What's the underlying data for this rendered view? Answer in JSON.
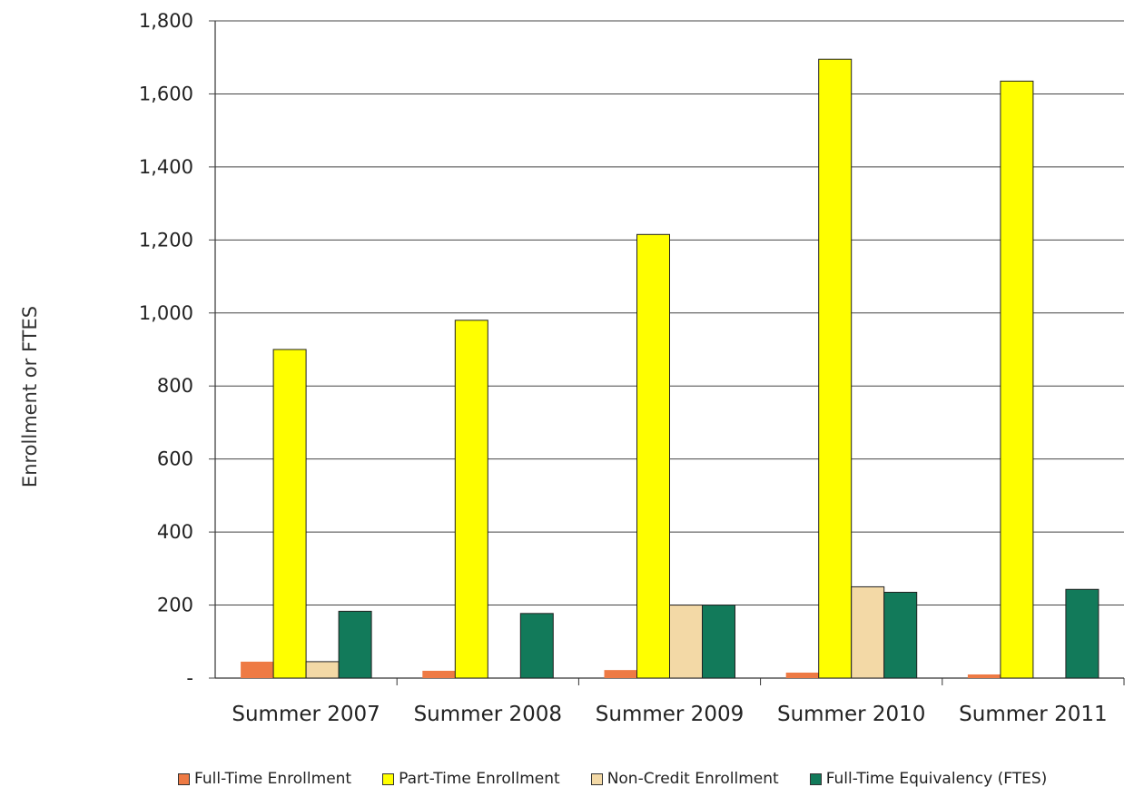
{
  "chart_data": {
    "type": "bar",
    "title": "",
    "xlabel": "",
    "ylabel": "Enrollment or FTES",
    "ylim": [
      0,
      1800
    ],
    "yticks": [
      0,
      200,
      400,
      600,
      800,
      1000,
      1200,
      1400,
      1600,
      1800
    ],
    "ytick_labels": [
      "-",
      "200",
      "400",
      "600",
      "800",
      "1,000",
      "1,200",
      "1,400",
      "1,600",
      "1,800"
    ],
    "categories": [
      "Summer 2007",
      "Summer 2008",
      "Summer 2009",
      "Summer 2010",
      "Summer 2011"
    ],
    "series": [
      {
        "name": "Full-Time Enrollment",
        "color": "#ee7a44",
        "values": [
          45,
          20,
          22,
          15,
          10
        ]
      },
      {
        "name": "Part-Time Enrollment",
        "color": "#ffff00",
        "values": [
          900,
          980,
          1215,
          1695,
          1635
        ]
      },
      {
        "name": "Non-Credit Enrollment",
        "color": "#f3d9a6",
        "values": [
          45,
          0,
          200,
          250,
          0
        ]
      },
      {
        "name": "Full-Time Equivalency (FTES)",
        "color": "#127a5a",
        "values": [
          183,
          177,
          200,
          235,
          243
        ]
      }
    ],
    "grid": true,
    "legend_position": "bottom"
  }
}
